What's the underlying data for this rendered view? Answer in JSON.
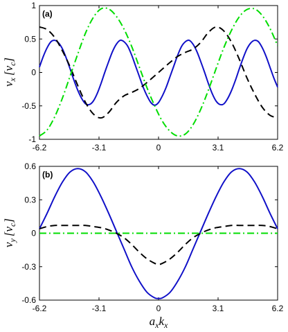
{
  "chart_data": [
    {
      "type": "line",
      "panel_label": "(a)",
      "ylabel": "v_x [v_c]",
      "ylabel_parts": {
        "var": "v",
        "sub": "x",
        "unit": "[v",
        "unit_sub": "c",
        "close": "]"
      },
      "xlim": [
        -6.2,
        6.2
      ],
      "ylim": [
        -1,
        1
      ],
      "xticks": [
        -6.2,
        -3.1,
        0,
        3.1,
        6.2
      ],
      "xtick_labels": [
        "-6.2",
        "-3.1",
        "0",
        "3.1",
        "6.2"
      ],
      "yticks": [
        -1,
        -0.5,
        0,
        0.5,
        1
      ],
      "ytick_labels": [
        "-1",
        "-0.5",
        "0",
        "0.5",
        "1"
      ],
      "grid": false,
      "series": [
        {
          "color": "#1010c8",
          "style": "solid",
          "x": [
            -6.2,
            -6.0,
            -5.8,
            -5.6,
            -5.4,
            -5.2,
            -5.0,
            -4.8,
            -4.6,
            -4.4,
            -4.2,
            -4.0,
            -3.8,
            -3.6,
            -3.4,
            -3.2,
            -3.0,
            -2.8,
            -2.6,
            -2.4,
            -2.2,
            -2.0,
            -1.8,
            -1.6,
            -1.4,
            -1.2,
            -1.0,
            -0.8,
            -0.6,
            -0.4,
            -0.2,
            0.0,
            0.2,
            0.4,
            0.6,
            0.8,
            1.0,
            1.2,
            1.4,
            1.6,
            1.8,
            2.0,
            2.2,
            2.4,
            2.6,
            2.8,
            3.0,
            3.2,
            3.4,
            3.6,
            3.8,
            4.0,
            4.2,
            4.4,
            4.6,
            4.8,
            5.0,
            5.2,
            5.4,
            5.6,
            5.8,
            6.0,
            6.2
          ],
          "y": [
            0.08,
            0.24,
            0.37,
            0.46,
            0.48,
            0.44,
            0.35,
            0.21,
            0.05,
            -0.12,
            -0.27,
            -0.39,
            -0.47,
            -0.48,
            -0.43,
            -0.32,
            -0.17,
            0.0,
            0.16,
            0.31,
            0.42,
            0.48,
            0.46,
            0.39,
            0.26,
            0.1,
            -0.06,
            -0.22,
            -0.35,
            -0.45,
            -0.49,
            -0.45,
            -0.35,
            -0.22,
            -0.06,
            0.1,
            0.26,
            0.39,
            0.46,
            0.48,
            0.42,
            0.31,
            0.16,
            0.0,
            -0.17,
            -0.32,
            -0.43,
            -0.48,
            -0.47,
            -0.39,
            -0.27,
            -0.12,
            0.05,
            0.21,
            0.35,
            0.44,
            0.48,
            0.46,
            0.37,
            0.24,
            0.08,
            -0.08,
            -0.22
          ]
        },
        {
          "color": "#000000",
          "style": "dashed",
          "x": [
            -6.2,
            -5.8,
            -5.4,
            -5.0,
            -4.6,
            -4.2,
            -3.8,
            -3.4,
            -3.0,
            -2.6,
            -2.2,
            -1.8,
            -1.4,
            -1.0,
            -0.6,
            -0.2,
            0.0,
            0.2,
            0.6,
            1.0,
            1.4,
            1.8,
            2.2,
            2.6,
            3.0,
            3.4,
            3.8,
            4.2,
            4.6,
            5.0,
            5.4,
            5.8,
            6.2
          ],
          "y": [
            0.68,
            0.64,
            0.52,
            0.32,
            0.08,
            -0.2,
            -0.45,
            -0.62,
            -0.68,
            -0.6,
            -0.45,
            -0.35,
            -0.3,
            -0.24,
            -0.15,
            -0.05,
            0.0,
            0.05,
            0.15,
            0.24,
            0.3,
            0.35,
            0.45,
            0.6,
            0.68,
            0.62,
            0.45,
            0.2,
            -0.08,
            -0.32,
            -0.52,
            -0.64,
            -0.68
          ]
        },
        {
          "color": "#00dd00",
          "style": "dashdot",
          "x": [
            -6.2,
            -5.8,
            -5.4,
            -5.0,
            -4.6,
            -4.2,
            -3.8,
            -3.4,
            -3.0,
            -2.6,
            -2.2,
            -1.8,
            -1.4,
            -1.0,
            -0.6,
            -0.2,
            0.2,
            0.6,
            1.0,
            1.4,
            1.8,
            2.2,
            2.6,
            3.0,
            3.4,
            3.8,
            4.2,
            4.6,
            5.0,
            5.4,
            5.8,
            6.2
          ],
          "y": [
            -0.95,
            -0.86,
            -0.66,
            -0.38,
            -0.05,
            0.28,
            0.59,
            0.82,
            0.95,
            0.95,
            0.84,
            0.65,
            0.39,
            0.08,
            -0.23,
            -0.5,
            -0.73,
            -0.88,
            -0.95,
            -0.92,
            -0.78,
            -0.55,
            -0.26,
            0.06,
            0.37,
            0.63,
            0.83,
            0.94,
            0.95,
            0.85,
            0.66,
            0.4
          ]
        }
      ]
    },
    {
      "type": "line",
      "panel_label": "(b)",
      "xlabel": "a_x k_x",
      "xlabel_parts": {
        "var1": "a",
        "sub1": "x",
        "var2": "k",
        "sub2": "x"
      },
      "ylabel": "v_y [v_c]",
      "ylabel_parts": {
        "var": "v",
        "sub": "y",
        "unit": "[v",
        "unit_sub": "c",
        "close": "]"
      },
      "xlim": [
        -6.2,
        6.2
      ],
      "ylim": [
        -0.6,
        0.6
      ],
      "xticks": [
        -6.2,
        -3.1,
        0,
        3.1,
        6.2
      ],
      "xtick_labels": [
        "-6.2",
        "-3.1",
        "0",
        "3.1",
        "6.2"
      ],
      "yticks": [
        -0.6,
        -0.3,
        0,
        0.3,
        0.6
      ],
      "ytick_labels": [
        "-0.6",
        "-0.3",
        "0",
        "0.3",
        "0.6"
      ],
      "grid": false,
      "series": [
        {
          "color": "#1010c8",
          "style": "solid",
          "x": [
            -6.2,
            -5.8,
            -5.4,
            -5.0,
            -4.6,
            -4.2,
            -3.8,
            -3.4,
            -3.0,
            -2.6,
            -2.2,
            -1.8,
            -1.4,
            -1.0,
            -0.6,
            -0.2,
            0.0,
            0.2,
            0.6,
            1.0,
            1.4,
            1.8,
            2.2,
            2.6,
            3.0,
            3.4,
            3.8,
            4.2,
            4.6,
            5.0,
            5.4,
            5.8,
            6.2
          ],
          "y": [
            0.04,
            0.18,
            0.33,
            0.46,
            0.55,
            0.58,
            0.55,
            0.46,
            0.33,
            0.18,
            0.02,
            -0.14,
            -0.3,
            -0.43,
            -0.53,
            -0.58,
            -0.585,
            -0.58,
            -0.53,
            -0.43,
            -0.3,
            -0.14,
            0.02,
            0.18,
            0.33,
            0.46,
            0.55,
            0.58,
            0.55,
            0.46,
            0.33,
            0.18,
            0.04
          ]
        },
        {
          "color": "#000000",
          "style": "dashed",
          "x": [
            -6.2,
            -5.8,
            -5.4,
            -5.0,
            -4.6,
            -4.2,
            -3.8,
            -3.4,
            -3.0,
            -2.6,
            -2.2,
            -1.8,
            -1.4,
            -1.0,
            -0.6,
            -0.2,
            0.0,
            0.2,
            0.6,
            1.0,
            1.4,
            1.8,
            2.2,
            2.6,
            3.0,
            3.4,
            3.8,
            4.2,
            4.6,
            5.0,
            5.4,
            5.8,
            6.2
          ],
          "y": [
            0.04,
            0.06,
            0.07,
            0.07,
            0.07,
            0.07,
            0.07,
            0.06,
            0.05,
            0.03,
            0.0,
            -0.04,
            -0.1,
            -0.17,
            -0.23,
            -0.27,
            -0.28,
            -0.27,
            -0.23,
            -0.17,
            -0.1,
            -0.04,
            0.0,
            0.03,
            0.05,
            0.06,
            0.07,
            0.07,
            0.07,
            0.07,
            0.07,
            0.06,
            0.04
          ]
        },
        {
          "color": "#00dd00",
          "style": "dashdot",
          "x": [
            -6.2,
            6.2
          ],
          "y": [
            0,
            0
          ]
        }
      ]
    }
  ]
}
